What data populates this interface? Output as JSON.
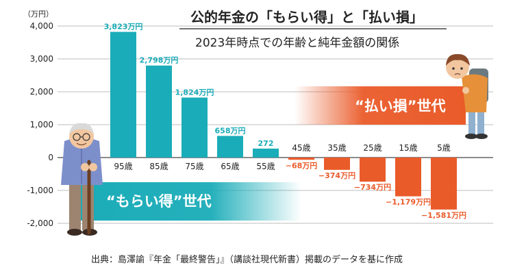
{
  "chart_data": {
    "type": "bar",
    "title": "公的年金の「もらい得」と「払い損」",
    "subtitle": "2023年時点での年齢と純年金額の関係",
    "y_unit": "（万円）",
    "ylim": [
      -2000,
      4000
    ],
    "yticks": [
      4000,
      3000,
      2000,
      1000,
      0,
      -1000,
      -2000
    ],
    "ytick_labels": [
      "4,000",
      "3,000",
      "2,000",
      "1,000",
      "0",
      "-1,000",
      "-2,000"
    ],
    "categories": [
      "95歳",
      "85歳",
      "75歳",
      "65歳",
      "55歳",
      "45歳",
      "35歳",
      "25歳",
      "15歳",
      "5歳"
    ],
    "values": [
      3823,
      2798,
      1824,
      658,
      272,
      -68,
      -374,
      -734,
      -1179,
      -1581
    ],
    "value_labels": [
      "3,823万円",
      "2,798万円",
      "1,824万円",
      "658万円",
      "272",
      "−68万円",
      "−374万円",
      "−734万円",
      "−1,179万円",
      "−1,581万円"
    ],
    "positive_color": "#1aacb8",
    "negative_color": "#ea5b2a",
    "grid": true,
    "annotations": {
      "gain": "“もらい得”世代",
      "loss": "“払い損”世代"
    }
  },
  "source": "出典：島澤諭『年金「最終警告」』（講談社現代新書）掲載のデータを基に作成",
  "illustrations": {
    "elderly": "elderly-man-with-cane",
    "child": "child-with-backpack"
  }
}
